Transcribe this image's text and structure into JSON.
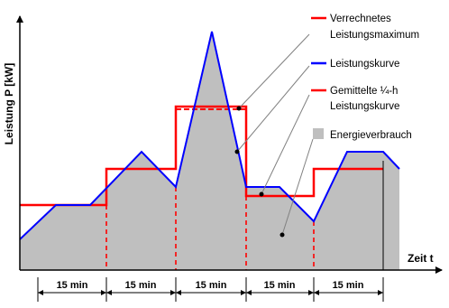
{
  "diagram": {
    "y_axis_label": "Leistung P [kW]",
    "x_axis_label": "Zeit t",
    "legend": [
      {
        "key": "max",
        "label_line1": "Verrechnetes",
        "label_line2": "Leistungsmaximum",
        "color": "#ff0000"
      },
      {
        "key": "curve",
        "label_line1": "Leistungskurve",
        "label_line2": "",
        "color": "#0000ff"
      },
      {
        "key": "avg",
        "label_line1": "Gemittelte ¼-h",
        "label_line2": "Leistungskurve",
        "color": "#ff0000"
      },
      {
        "key": "energy",
        "label_line1": "Energieverbrauch",
        "label_line2": "",
        "color": "#bfbfbf"
      }
    ],
    "interval_labels": [
      "15 min",
      "15 min",
      "15 min",
      "15 min",
      "15 min"
    ],
    "colors": {
      "area_fill": "#bfbfbf",
      "power_curve": "#0000ff",
      "average_line": "#ff0000",
      "axis": "#000000",
      "pointer": "#808080"
    }
  }
}
